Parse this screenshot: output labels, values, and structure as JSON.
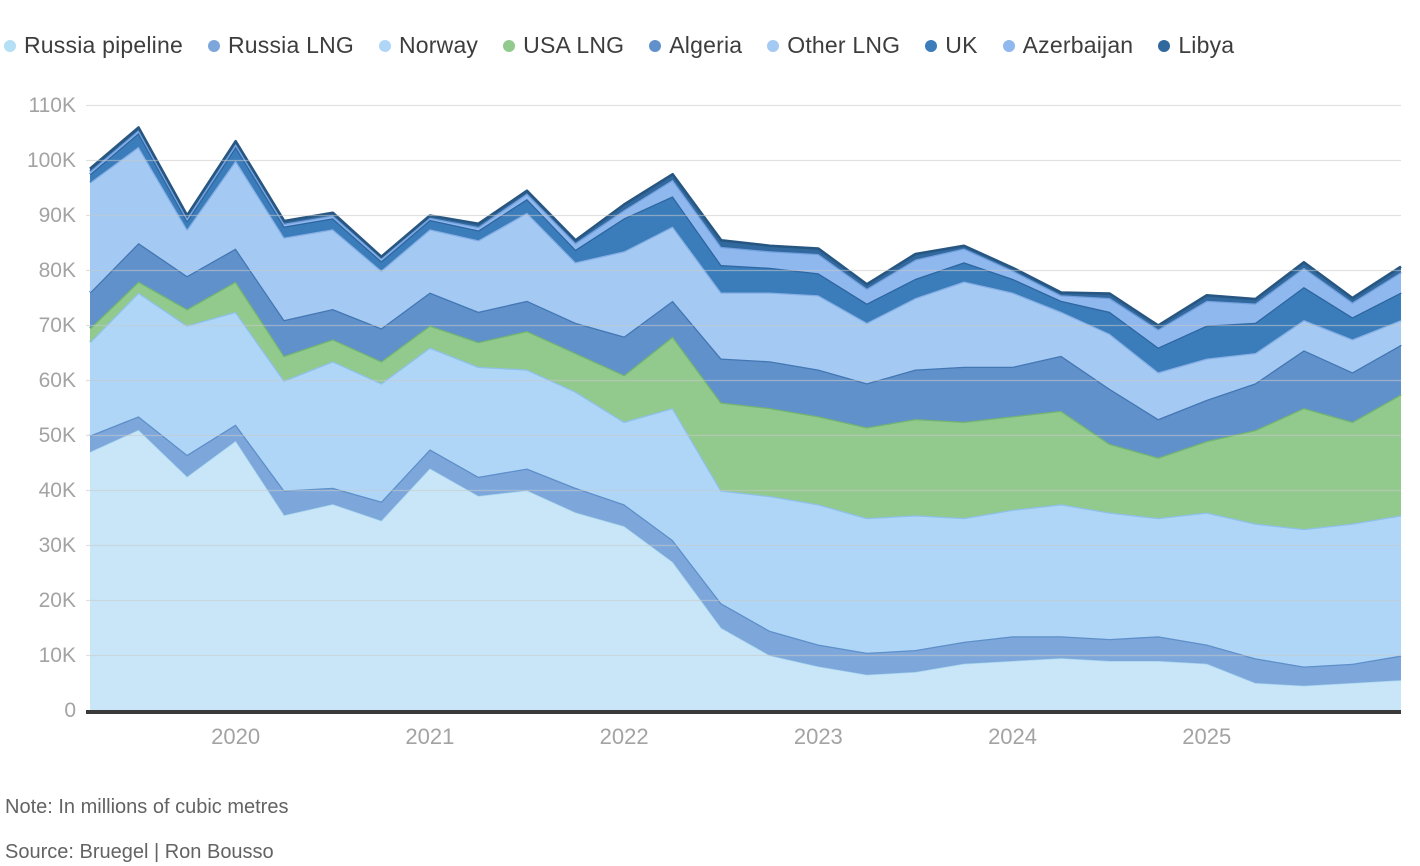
{
  "legend": {
    "items": [
      {
        "label": "Russia pipeline",
        "color": "#c8e6f8",
        "line": "#a9d6ee"
      },
      {
        "label": "Russia LNG",
        "color": "#7da7db",
        "line": "#5e8fc9"
      },
      {
        "label": "Norway",
        "color": "#afd6f7",
        "line": "#8fc0e9"
      },
      {
        "label": "USA LNG",
        "color": "#92ca8e",
        "line": "#72b471"
      },
      {
        "label": "Algeria",
        "color": "#6191cb",
        "line": "#4377b3"
      },
      {
        "label": "Other LNG",
        "color": "#a4c9f3",
        "line": "#85afe5"
      },
      {
        "label": "UK",
        "color": "#3b7cba",
        "line": "#2d66a0"
      },
      {
        "label": "Azerbaijan",
        "color": "#8fb8ee",
        "line": "#74a1de"
      },
      {
        "label": "Libya",
        "color": "#31699f",
        "line": "#265681"
      }
    ]
  },
  "chart": {
    "y_ticks": [
      "0",
      "10K",
      "20K",
      "30K",
      "40K",
      "50K",
      "60K",
      "70K",
      "80K",
      "90K",
      "100K",
      "110K"
    ],
    "x_ticks": [
      {
        "label": "2020",
        "index": 3
      },
      {
        "label": "2021",
        "index": 7
      },
      {
        "label": "2022",
        "index": 11
      },
      {
        "label": "2023",
        "index": 15
      },
      {
        "label": "2024",
        "index": 19
      },
      {
        "label": "2025",
        "index": 23
      }
    ],
    "note": "Note: In millions of cubic metres",
    "source": "Source: Bruegel | Ron Bousso",
    "grid_color": "#c9c9c9",
    "baseline_color": "#3a3a3a",
    "axis_label_color": "#a3a3a3"
  },
  "chart_data": {
    "type": "area",
    "stacked": true,
    "title": "",
    "xlabel": "",
    "ylabel": "",
    "unit": "millions of cubic metres",
    "ylim": [
      0,
      110000
    ],
    "legend_position": "top",
    "grid": true,
    "x": [
      "2019-Q2",
      "2019-Q3",
      "2019-Q4",
      "2020-Q1",
      "2020-Q2",
      "2020-Q3",
      "2020-Q4",
      "2021-Q1",
      "2021-Q2",
      "2021-Q3",
      "2021-Q4",
      "2022-Q1",
      "2022-Q2",
      "2022-Q3",
      "2022-Q4",
      "2023-Q1",
      "2023-Q2",
      "2023-Q3",
      "2023-Q4",
      "2024-Q1",
      "2024-Q2",
      "2024-Q3",
      "2024-Q4",
      "2025-Q1",
      "2025-Q2",
      "2025-Q3",
      "2025-Q4",
      "2026-Q1"
    ],
    "series": [
      {
        "name": "Russia pipeline",
        "values": [
          47000,
          51000,
          42500,
          49000,
          35500,
          37500,
          34500,
          44000,
          39000,
          40000,
          36000,
          33500,
          27000,
          15000,
          10000,
          8000,
          6500,
          7000,
          8500,
          9000,
          9500,
          9000,
          9000,
          8500,
          5000,
          4500,
          5000,
          5500
        ]
      },
      {
        "name": "Russia LNG",
        "values": [
          3000,
          2500,
          4000,
          3000,
          4500,
          3000,
          3500,
          3500,
          3500,
          4000,
          4500,
          4000,
          4000,
          4500,
          4500,
          4000,
          4000,
          4000,
          4000,
          4500,
          4000,
          4000,
          4500,
          3500,
          4500,
          3500,
          3500,
          4500
        ]
      },
      {
        "name": "Norway",
        "values": [
          17000,
          22500,
          23500,
          20500,
          20000,
          23000,
          21500,
          18500,
          20000,
          18000,
          17500,
          15000,
          24000,
          20500,
          24500,
          25500,
          24500,
          24500,
          22500,
          23000,
          24000,
          23000,
          21500,
          24000,
          24500,
          25000,
          25500,
          25500
        ]
      },
      {
        "name": "USA LNG",
        "values": [
          2500,
          2000,
          3000,
          5500,
          4500,
          4000,
          4000,
          4000,
          4500,
          7000,
          7000,
          8500,
          13000,
          16000,
          16000,
          16000,
          16500,
          17500,
          17500,
          17000,
          17000,
          12500,
          11000,
          13000,
          17000,
          22000,
          18500,
          22000
        ]
      },
      {
        "name": "Algeria",
        "values": [
          6500,
          7000,
          6000,
          6000,
          6500,
          5500,
          6000,
          6000,
          5500,
          5500,
          5500,
          7000,
          6500,
          8000,
          8500,
          8500,
          8000,
          9000,
          10000,
          9000,
          10000,
          10000,
          7000,
          7500,
          8500,
          10500,
          9000,
          9000
        ]
      },
      {
        "name": "Other LNG",
        "values": [
          20000,
          17500,
          8500,
          16000,
          15000,
          14500,
          10500,
          11500,
          13000,
          16000,
          11000,
          15500,
          13500,
          12000,
          12500,
          13500,
          11000,
          13000,
          15500,
          13500,
          8000,
          10000,
          8500,
          7500,
          5500,
          5500,
          6000,
          4500
        ]
      },
      {
        "name": "UK",
        "values": [
          1500,
          2500,
          1500,
          2500,
          2000,
          2000,
          1700,
          1700,
          1800,
          2500,
          2300,
          6000,
          5500,
          5000,
          4500,
          4000,
          3500,
          3500,
          3500,
          2500,
          2000,
          4000,
          4500,
          6000,
          5500,
          6000,
          4000,
          5000
        ]
      },
      {
        "name": "Azerbaijan",
        "values": [
          500,
          500,
          500,
          500,
          500,
          500,
          500,
          400,
          600,
          1000,
          1200,
          1500,
          3000,
          3300,
          3000,
          3500,
          2700,
          3500,
          2500,
          1500,
          1000,
          2500,
          3300,
          4500,
          3500,
          3500,
          2700,
          3700
        ]
      },
      {
        "name": "Libya",
        "values": [
          500,
          500,
          500,
          500,
          500,
          500,
          300,
          400,
          600,
          500,
          500,
          1000,
          1000,
          1200,
          1000,
          1000,
          800,
          1000,
          500,
          500,
          500,
          800,
          700,
          1000,
          800,
          1000,
          800,
          1000
        ]
      }
    ]
  }
}
